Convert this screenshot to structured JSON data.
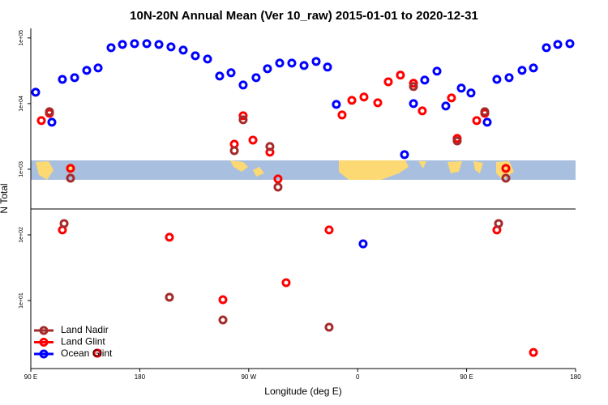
{
  "chart_data": {
    "type": "scatter",
    "title": "10N-20N Annual Mean (Ver 10_raw)   2015-01-01 to 2020-12-31",
    "xlabel": "Longitude (deg E)",
    "ylabel": "N Total",
    "log_y": true,
    "legend": "bottom-left",
    "xlim": [
      90,
      540
    ],
    "xticks": [
      {
        "value": 90,
        "label": "90 E"
      },
      180,
      {
        "value": 270,
        "label": "90 W"
      },
      {
        "value": 360,
        "label": "0"
      },
      {
        "value": 450,
        "label": "90 E"
      },
      {
        "value": 540,
        "label": "180"
      }
    ],
    "ylim": [
      0.92,
      140000
    ],
    "yticks": [
      {
        "value": 10,
        "label": "1e+01"
      },
      {
        "value": 100,
        "label": "1e+02"
      },
      {
        "value": 1000,
        "label": "1e+03"
      },
      {
        "value": 10000,
        "label": "1e+04"
      },
      {
        "value": 100000,
        "label": "1e+05"
      }
    ],
    "series": [
      {
        "name": "Land Nadir",
        "color": "#a52a2a",
        "x": [
          122.8,
          117.5,
          204.5,
          248.7,
          258.1,
          265.4,
          287.5,
          294.2,
          336.4,
          406.1,
          442.2,
          465.0,
          476.4,
          482.4,
          105.4
        ],
        "values": [
          731,
          149,
          11.2,
          5.06,
          1920,
          5660,
          2220,
          535,
          3.92,
          18200,
          2700,
          7530,
          149,
          731,
          7530
        ]
      },
      {
        "name": "Land Glint",
        "color": "#ff0000",
        "x": [
          98.7,
          105.4,
          122.8,
          116.1,
          204.5,
          144.9,
          248.7,
          258.1,
          265.4,
          273.5,
          287.5,
          294.2,
          300.9,
          336.4,
          347.1,
          355.2,
          365.2,
          376.6,
          385.3,
          395.3,
          406.1,
          413.4,
          437.5,
          442.2,
          458.3,
          465.0,
          475.0,
          482.4,
          505.2
        ],
        "values": [
          5510,
          7110,
          1030,
          119,
          92,
          1.58,
          10.3,
          2410,
          6530,
          2780,
          1820,
          711,
          18.7,
          119,
          6710,
          11200,
          12600,
          10300,
          21500,
          27100,
          20400,
          7740,
          12200,
          2950,
          5510,
          7110,
          119,
          1030,
          1.62
        ]
      },
      {
        "name": "Ocean Glint",
        "color": "#0000ff",
        "x": [
          94.0,
          107.4,
          116.1,
          126.2,
          136.2,
          145.6,
          156.3,
          165.7,
          175.7,
          185.8,
          195.8,
          205.8,
          215.9,
          225.9,
          236.0,
          246.0,
          255.4,
          265.4,
          276.1,
          285.5,
          295.6,
          305.6,
          315.7,
          325.7,
          335.1,
          342.4,
          398.7,
          406.1,
          415.4,
          425.5,
          432.8,
          445.6,
          453.6,
          467.0,
          475.0,
          485.1,
          495.8,
          505.2,
          515.9,
          525.3,
          535.3,
          364.5,
          144.9
        ],
        "values": [
          14900,
          5200,
          23400,
          24800,
          32100,
          34900,
          71100,
          79600,
          82000,
          82000,
          79600,
          73100,
          65300,
          53500,
          47700,
          26300,
          29500,
          19200,
          24800,
          34000,
          41400,
          41400,
          38000,
          43900,
          36000,
          9730,
          1670,
          10000,
          22800,
          31200,
          9180,
          17200,
          14500,
          5200,
          23400,
          24800,
          32100,
          34900,
          71100,
          79600,
          82000,
          73,
          1.58
        ]
      }
    ]
  }
}
